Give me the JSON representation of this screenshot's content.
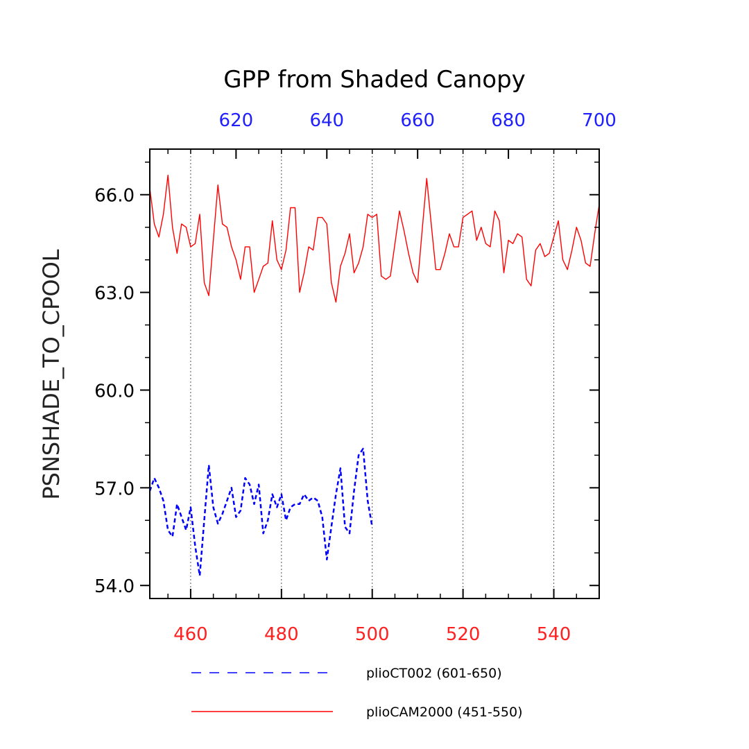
{
  "chart_data": {
    "type": "line",
    "title": "GPP from Shaded Canopy",
    "ylabel": "PSNSHADE_TO_CPOOL",
    "xlabel": "",
    "ylim": [
      53.6,
      67.4
    ],
    "y_ticks": [
      54.0,
      57.0,
      60.0,
      63.0,
      66.0
    ],
    "y_tick_labels": [
      "54.0",
      "57.0",
      "60.0",
      "63.0",
      "66.0"
    ],
    "grid": "vertical dotted lines at bottom-axis ticks",
    "x_bottom": {
      "range": [
        451,
        550
      ],
      "ticks": [
        460,
        480,
        500,
        520,
        540
      ],
      "tick_labels": [
        "460",
        "480",
        "500",
        "520",
        "540"
      ],
      "color": "#ff2020"
    },
    "x_top": {
      "range": [
        601,
        700
      ],
      "ticks": [
        620,
        640,
        660,
        680,
        700
      ],
      "tick_labels": [
        "620",
        "640",
        "660",
        "680",
        "700"
      ],
      "color": "#2020ff"
    },
    "series": [
      {
        "name": "plioCAM2000 (451-550)",
        "color": "#ff0000",
        "style": "solid",
        "x_start": 451,
        "values": [
          66.2,
          65.1,
          64.7,
          65.4,
          66.6,
          65.0,
          64.2,
          65.1,
          65.0,
          64.4,
          64.5,
          65.4,
          63.3,
          62.9,
          64.6,
          66.3,
          65.1,
          65.0,
          64.4,
          64.0,
          63.4,
          64.4,
          64.4,
          63.0,
          63.4,
          63.8,
          63.9,
          65.2,
          64.0,
          63.7,
          64.3,
          65.6,
          65.6,
          63.0,
          63.6,
          64.4,
          64.3,
          65.3,
          65.3,
          65.1,
          63.3,
          62.7,
          63.8,
          64.2,
          64.8,
          63.6,
          63.9,
          64.4,
          65.4,
          65.3,
          65.4,
          63.5,
          63.4,
          63.5,
          64.5,
          65.5,
          64.9,
          64.2,
          63.6,
          63.3,
          64.9,
          66.5,
          65.1,
          63.7,
          63.7,
          64.2,
          64.8,
          64.4,
          64.4,
          65.3,
          65.4,
          65.5,
          64.6,
          65.0,
          64.5,
          64.4,
          65.5,
          65.2,
          63.6,
          64.6,
          64.5,
          64.8,
          64.7,
          63.4,
          63.2,
          64.3,
          64.5,
          64.1,
          64.2,
          64.7,
          65.2,
          64.0,
          63.7,
          64.3,
          65.0,
          64.6,
          63.9,
          63.8,
          64.8,
          65.7
        ]
      },
      {
        "name": "plioCT002 (601-650)",
        "color": "#0000ff",
        "style": "dashed",
        "x_start": 451,
        "values": [
          56.9,
          57.3,
          57.0,
          56.6,
          55.7,
          55.5,
          56.5,
          56.1,
          55.7,
          56.4,
          55.2,
          54.3,
          56.0,
          57.7,
          56.4,
          55.9,
          56.2,
          56.6,
          57.0,
          56.1,
          56.3,
          57.3,
          57.1,
          56.5,
          57.1,
          55.6,
          56.0,
          56.8,
          56.4,
          56.8,
          56.0,
          56.4,
          56.5,
          56.5,
          56.8,
          56.6,
          56.7,
          56.6,
          56.1,
          54.8,
          55.8,
          56.8,
          57.6,
          55.8,
          55.6,
          56.9,
          58.0,
          58.2,
          56.6,
          55.8
        ]
      }
    ],
    "legend": {
      "placement": "bottom",
      "entries": [
        "plioCT002 (601-650)",
        "plioCAM2000 (451-550)"
      ]
    }
  }
}
